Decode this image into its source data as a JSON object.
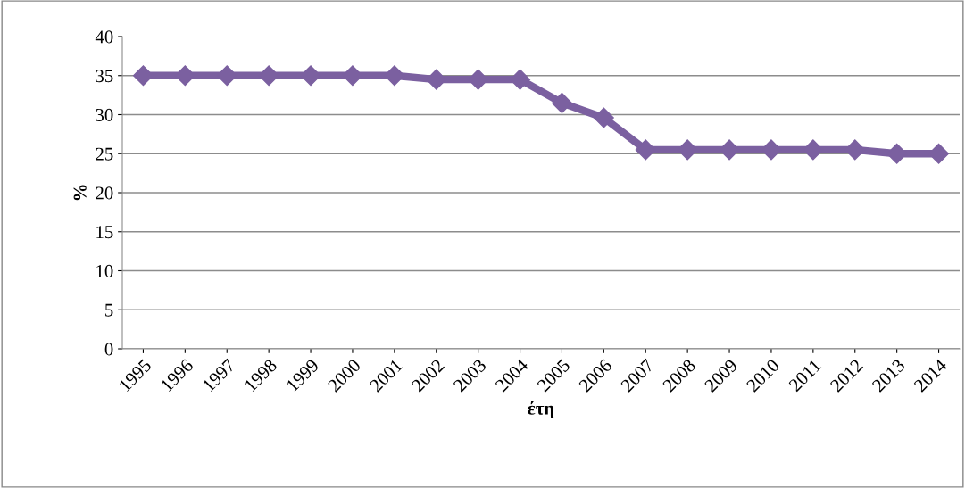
{
  "chart_data": {
    "type": "line",
    "xlabel": "έτη",
    "ylabel": "%",
    "categories": [
      "1995",
      "1996",
      "1997",
      "1998",
      "1999",
      "2000",
      "2001",
      "2002",
      "2003",
      "2004",
      "2005",
      "2006",
      "2007",
      "2008",
      "2009",
      "2010",
      "2011",
      "2012",
      "2013",
      "2014"
    ],
    "series": [
      {
        "color": "#7b60a0",
        "values": [
          35,
          35,
          35,
          35,
          35,
          35,
          35,
          34.5,
          34.5,
          34.5,
          31.5,
          29.6,
          25.5,
          25.5,
          25.5,
          25.5,
          25.5,
          25.5,
          25,
          25
        ]
      }
    ],
    "ylim": [
      0,
      40
    ],
    "yticks": [
      0,
      5,
      10,
      15,
      20,
      25,
      30,
      35,
      40
    ],
    "grid": "y",
    "marker": "diamond",
    "line_style": "solid"
  }
}
